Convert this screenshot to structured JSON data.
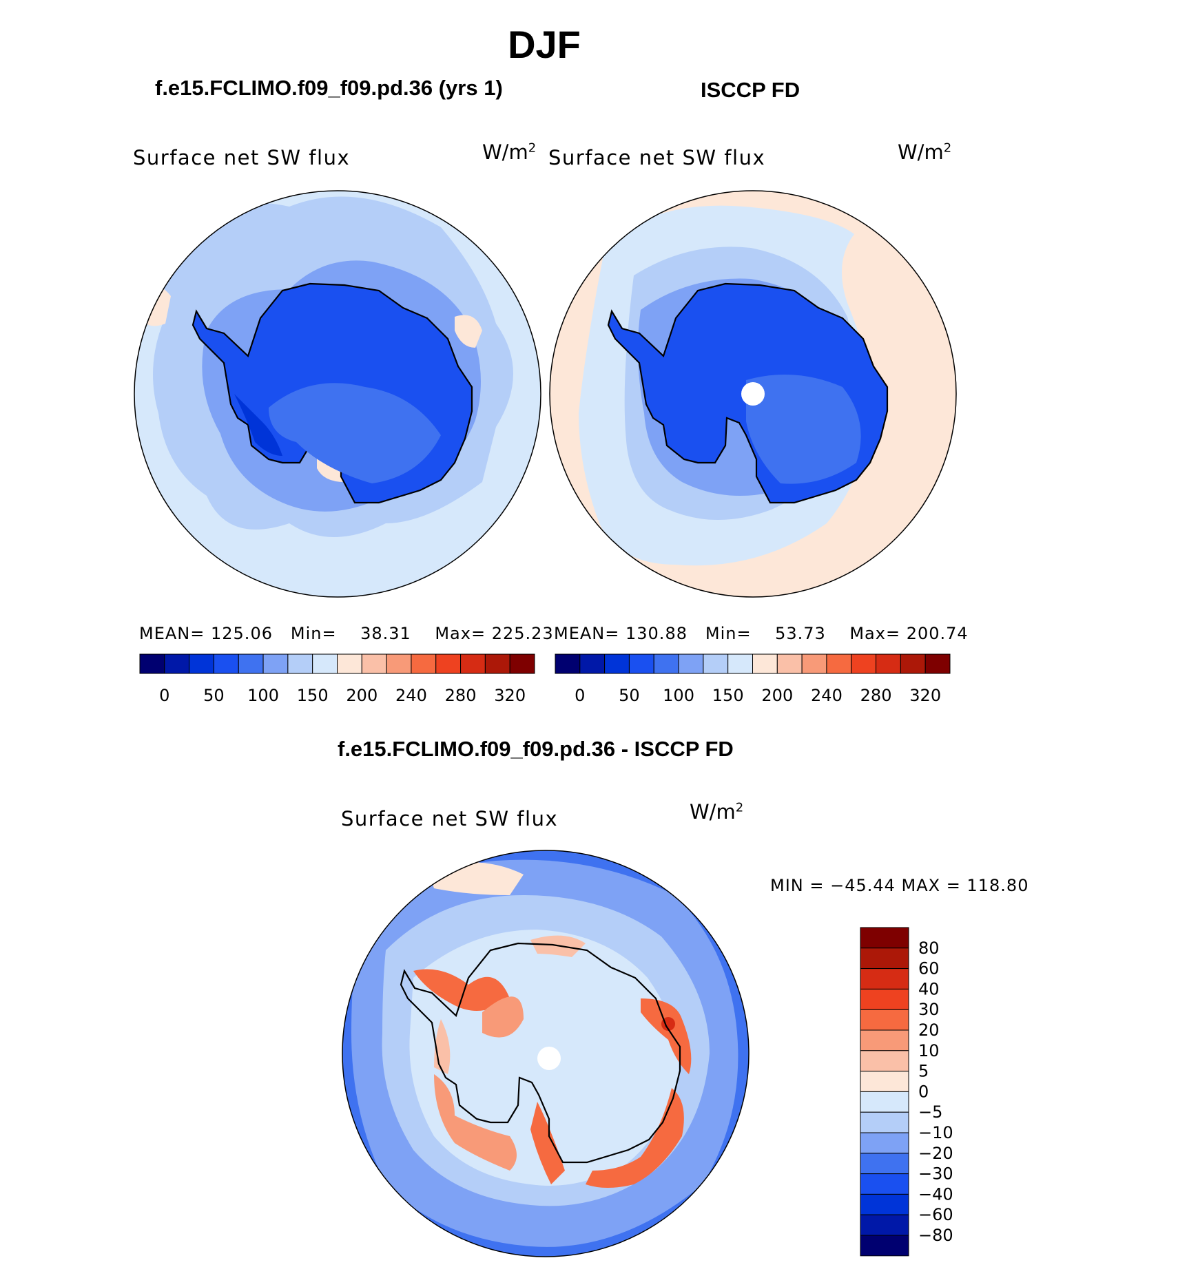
{
  "figure": {
    "title": "DJF"
  },
  "panels": [
    {
      "title": "f.e15.FCLIMO.f09_f09.pd.36 (yrs 1)",
      "variable": "Surface net SW flux",
      "units": "W/m",
      "units_sup": "2",
      "stats": {
        "mean_label": "MEAN=",
        "mean": "125.06",
        "min_label": "Min=",
        "min": "38.31",
        "max_label": "Max=",
        "max": "225.23"
      }
    },
    {
      "title": "ISCCP FD",
      "variable": "Surface net SW flux",
      "units": "W/m",
      "units_sup": "2",
      "stats": {
        "mean_label": "MEAN=",
        "mean": "130.88",
        "min_label": "Min=",
        "min": "53.73",
        "max_label": "Max=",
        "max": "200.74"
      }
    },
    {
      "title": "f.e15.FCLIMO.f09_f09.pd.36 - ISCCP FD",
      "variable": "Surface net SW flux",
      "units": "W/m",
      "units_sup": "2",
      "stats_text": "MIN = −45.44 MAX = 118.80"
    }
  ],
  "colorbars": {
    "horizontal": {
      "colors": [
        "#000070",
        "#0018a8",
        "#0034d8",
        "#1a50f0",
        "#3f72f0",
        "#7ea2f5",
        "#b4cef8",
        "#d6e8fb",
        "#fde7d8",
        "#fac0a8",
        "#f89a78",
        "#f66a40",
        "#ee4220",
        "#d62c14",
        "#ac1808",
        "#7e0000"
      ],
      "tick_labels": [
        "0",
        "50",
        "100",
        "150",
        "200",
        "240",
        "280",
        "320"
      ]
    },
    "vertical": {
      "colors": [
        "#7e0000",
        "#ac1808",
        "#d62c14",
        "#ee4220",
        "#f66a40",
        "#f89a78",
        "#fac0a8",
        "#fde7d8",
        "#d6e8fb",
        "#b4cef8",
        "#7ea2f5",
        "#3f72f0",
        "#1a50f0",
        "#0034d8",
        "#0018a8",
        "#000070"
      ],
      "tick_labels": [
        "80",
        "60",
        "40",
        "30",
        "20",
        "10",
        "5",
        "0",
        "−5",
        "−10",
        "−20",
        "−30",
        "−40",
        "−60",
        "−80"
      ]
    }
  },
  "map_colors": {
    "light_blue": "#d6e8fb",
    "pale_blue": "#b4cef8",
    "mid_blue": "#7ea2f5",
    "blue": "#3f72f0",
    "deep_blue": "#1a50f0",
    "navy": "#0034d8",
    "peach": "#fde7d8",
    "light_orange": "#fac0a8",
    "orange": "#f89a78",
    "red_orange": "#f66a40",
    "red": "#ee4220",
    "dark_red": "#d62c14",
    "coastline": "#000000"
  }
}
